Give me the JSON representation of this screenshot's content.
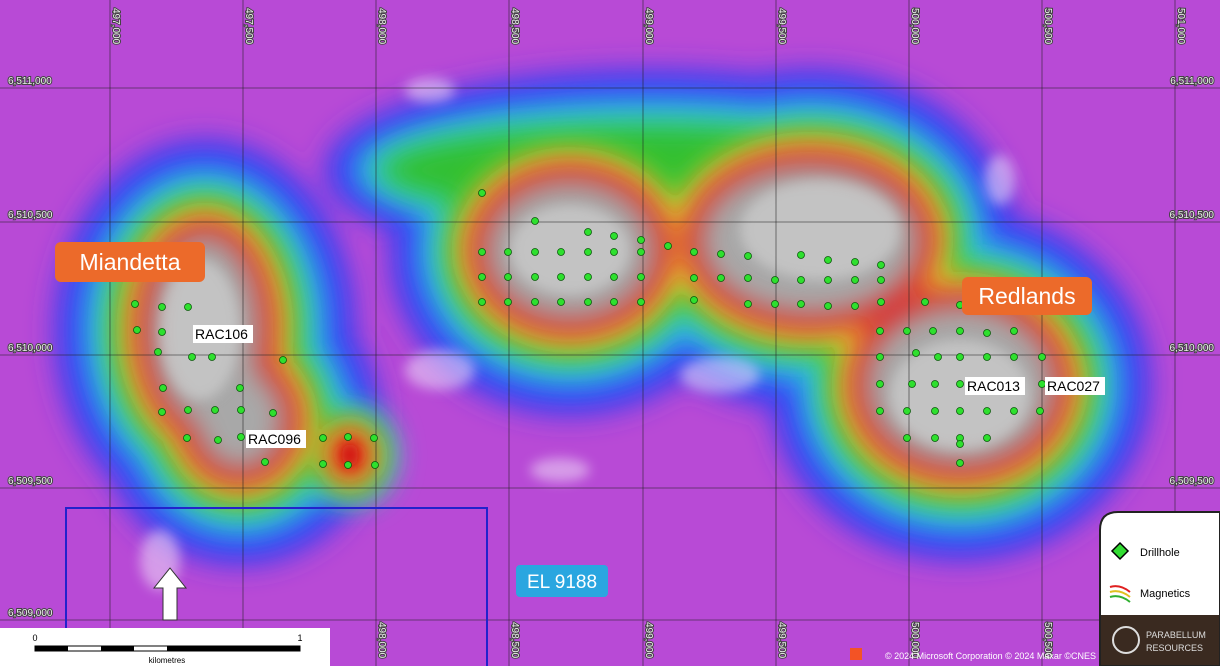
{
  "grid": {
    "eastings": [
      "497,000",
      "497,500",
      "498,000",
      "498,500",
      "499,000",
      "499,500",
      "500,000",
      "500,500",
      "501,000"
    ],
    "northings": [
      "6,511,000",
      "6,510,500",
      "6,510,000",
      "6,509,500",
      "6,509,000"
    ]
  },
  "labels": {
    "prospects": [
      "Miandetta",
      "Redlands"
    ],
    "holes": [
      "RAC106",
      "RAC096",
      "RAC013",
      "RAC027"
    ],
    "tenement": "EL 9188"
  },
  "legend": {
    "items": [
      "Drillhole",
      "Magnetics"
    ]
  },
  "logo": {
    "line1": "PARABELLUM",
    "line2": "RESOURCES"
  },
  "scale_bar": {
    "start": "0",
    "end": "1",
    "unit": "kilometres"
  },
  "attribution": "© 2024 Microsoft Corporation © 2024 Maxar ©CNES"
}
